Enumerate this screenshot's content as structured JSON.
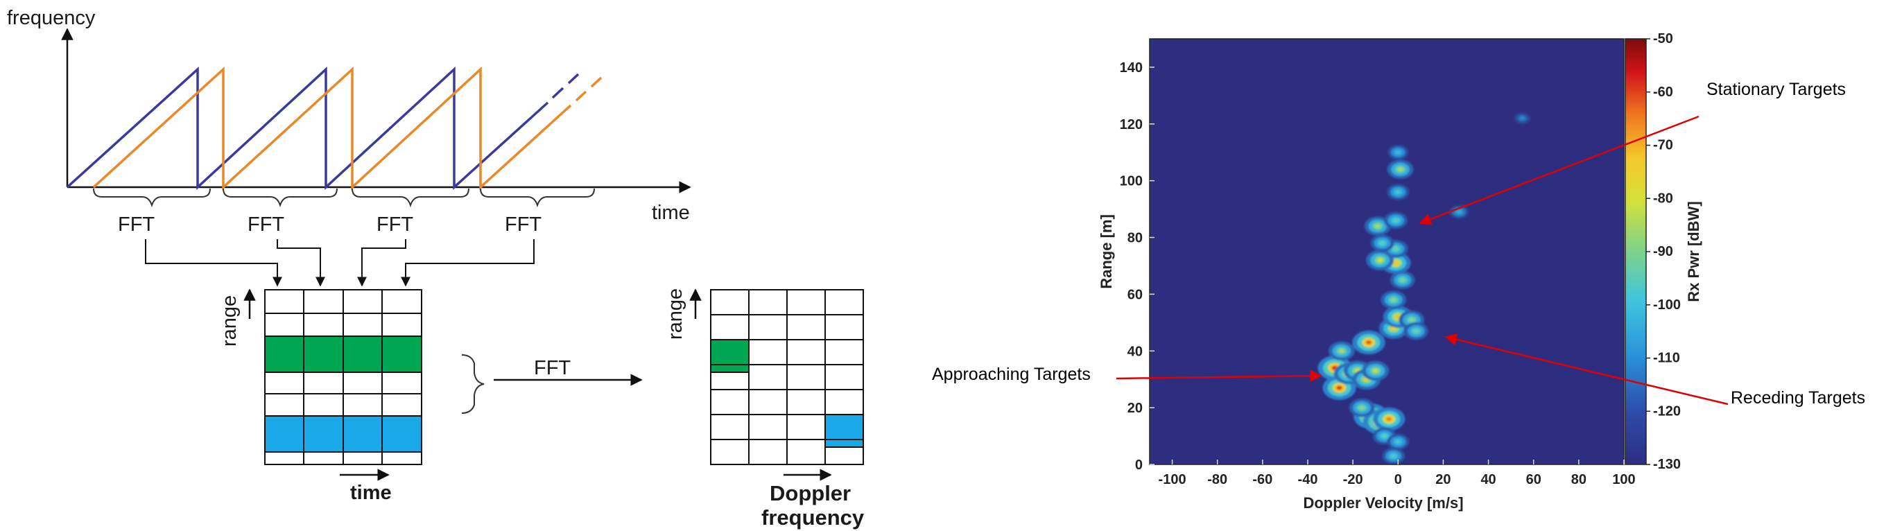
{
  "diagram": {
    "freq_axis_label": "frequency",
    "time_axis_label": "time",
    "fft_labels": [
      "FFT",
      "FFT",
      "FFT",
      "FFT"
    ],
    "range_label": "range",
    "grid_time_label": "time",
    "fft_between_label": "FFT",
    "range_label_2": "range",
    "doppler_label": "Doppler",
    "frequency_label": "frequency",
    "colors": {
      "chirp_blue": "#3a3a9e",
      "chirp_orange": "#e8892a",
      "green_cell": "#00a651",
      "blue_cell": "#19a9e8"
    }
  },
  "chart_data": {
    "type": "heatmap",
    "xlabel": "Doppler Velocity [m/s]",
    "ylabel": "Range [m]",
    "colorbar_label": "Rx Pwr [dBW]",
    "xlim": [
      -110,
      100
    ],
    "ylim": [
      0,
      150
    ],
    "x_ticks": [
      -100,
      -80,
      -60,
      -40,
      -20,
      0,
      20,
      40,
      60,
      80,
      100
    ],
    "y_ticks": [
      0,
      20,
      40,
      60,
      80,
      100,
      120,
      140
    ],
    "clim": [
      -130,
      -50
    ],
    "colorbar_ticks": [
      -50,
      -60,
      -70,
      -80,
      -90,
      -100,
      -110,
      -120,
      -130
    ],
    "background_color": "#2d2e80",
    "annotations": [
      {
        "text": "Stationary Targets"
      },
      {
        "text": "Approaching Targets"
      },
      {
        "text": "Receding Targets"
      }
    ],
    "blobs": [
      {
        "x": -28,
        "y": 34,
        "power": -58
      },
      {
        "x": -26,
        "y": 27,
        "power": -60
      },
      {
        "x": -22,
        "y": 32,
        "power": -75
      },
      {
        "x": -18,
        "y": 33,
        "power": -80
      },
      {
        "x": -14,
        "y": 30,
        "power": -78
      },
      {
        "x": -10,
        "y": 33,
        "power": -82
      },
      {
        "x": -25,
        "y": 40,
        "power": -85
      },
      {
        "x": -13,
        "y": 43,
        "power": -62
      },
      {
        "x": -12,
        "y": 17,
        "power": -55
      },
      {
        "x": -8,
        "y": 15,
        "power": -58
      },
      {
        "x": -4,
        "y": 16,
        "power": -65
      },
      {
        "x": -16,
        "y": 20,
        "power": -88
      },
      {
        "x": -6,
        "y": 10,
        "power": -95
      },
      {
        "x": -2,
        "y": 3,
        "power": -98
      },
      {
        "x": 0,
        "y": 8,
        "power": -100
      },
      {
        "x": -2,
        "y": 48,
        "power": -75
      },
      {
        "x": 0,
        "y": 52,
        "power": -72
      },
      {
        "x": 6,
        "y": 51,
        "power": -88
      },
      {
        "x": 8,
        "y": 47,
        "power": -92
      },
      {
        "x": -2,
        "y": 58,
        "power": -88
      },
      {
        "x": 2,
        "y": 65,
        "power": -90
      },
      {
        "x": -1,
        "y": 71,
        "power": -72
      },
      {
        "x": -1,
        "y": 76,
        "power": -92
      },
      {
        "x": -8,
        "y": 72,
        "power": -80
      },
      {
        "x": -9,
        "y": 84,
        "power": -85
      },
      {
        "x": -7,
        "y": 78,
        "power": -95
      },
      {
        "x": -1,
        "y": 86,
        "power": -95
      },
      {
        "x": 1,
        "y": 104,
        "power": -85
      },
      {
        "x": 0,
        "y": 110,
        "power": -105
      },
      {
        "x": 0,
        "y": 96,
        "power": -100
      },
      {
        "x": 27,
        "y": 89,
        "power": -110
      },
      {
        "x": 55,
        "y": 122,
        "power": -118
      }
    ]
  }
}
